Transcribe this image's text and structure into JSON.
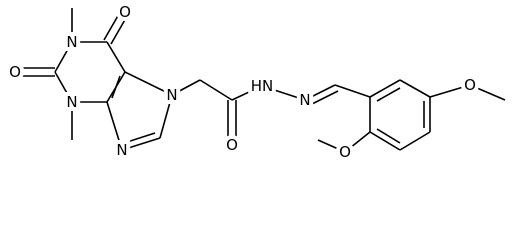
{
  "atoms": [
    "O",
    "O",
    "N",
    "N",
    "N",
    "N",
    "O",
    "HN",
    "N",
    "O",
    "O"
  ]
}
